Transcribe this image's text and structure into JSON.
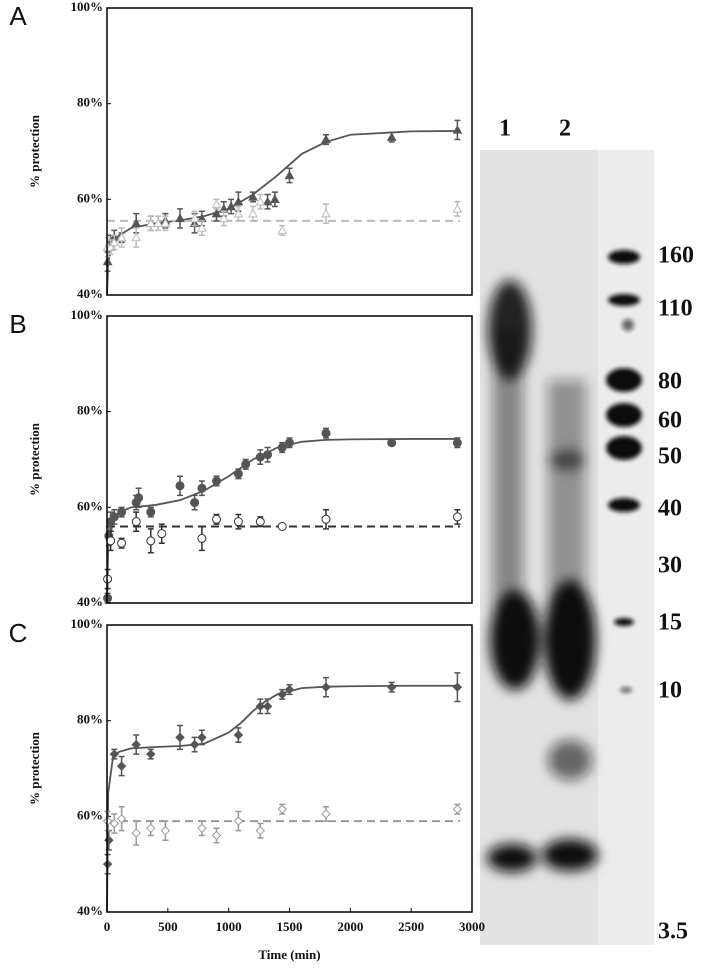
{
  "chart_data": [
    {
      "type": "scatter",
      "panel_label": "A",
      "ylabel": "% protection",
      "xlim": [
        0,
        3000
      ],
      "ylim": [
        40,
        100
      ],
      "yticks": [
        {
          "value": 40,
          "label": "40%"
        },
        {
          "value": 60,
          "label": "60%"
        },
        {
          "value": 80,
          "label": "80%"
        },
        {
          "value": 100,
          "label": "100%"
        }
      ],
      "series": [
        {
          "color": "#555555",
          "marker": "triangle",
          "filled": true,
          "x": [
            5,
            30,
            60,
            120,
            240,
            360,
            480,
            600,
            720,
            780,
            900,
            960,
            1020,
            1080,
            1200,
            1320,
            1380,
            1500,
            1800,
            2340,
            2880
          ],
          "values": [
            47,
            51,
            52,
            52,
            55,
            55,
            55.5,
            56,
            55,
            56,
            57,
            58,
            58.5,
            59.5,
            60.5,
            59.5,
            60,
            65,
            72.5,
            73,
            74.5
          ],
          "errors": [
            2,
            1.5,
            1.5,
            1,
            2,
            1.5,
            1.5,
            2,
            2,
            1.5,
            1.5,
            1.5,
            1.5,
            2,
            1,
            1.5,
            1.5,
            1.5,
            1,
            1,
            2
          ]
        },
        {
          "color": "#bbbbbb",
          "marker": "triangle",
          "filled": false,
          "x": [
            5,
            30,
            60,
            120,
            240,
            360,
            420,
            480,
            720,
            780,
            900,
            960,
            1080,
            1200,
            1260,
            1440,
            1800,
            2880
          ],
          "values": [
            50,
            50,
            51,
            52,
            52,
            55,
            55,
            55,
            56,
            54,
            59,
            56,
            57,
            57,
            59.5,
            53.5,
            57,
            58
          ],
          "errors": [
            2,
            1.5,
            1.5,
            2,
            2,
            1.5,
            1.5,
            1.5,
            1.5,
            1.5,
            1,
            1.5,
            1.5,
            1.5,
            1.5,
            1,
            2,
            1.5
          ]
        }
      ],
      "fits": [
        {
          "color": "#555555",
          "dashed": false,
          "x": [
            0,
            10,
            50,
            100,
            200,
            400,
            600,
            800,
            1000,
            1200,
            1400,
            1600,
            1800,
            2000,
            2500,
            2900
          ],
          "values": [
            40,
            47,
            51,
            52.5,
            54,
            55,
            55.6,
            56.5,
            58,
            61,
            65,
            69.5,
            72,
            73.5,
            74.2,
            74.3
          ]
        },
        {
          "color": "#bbbbbb",
          "dashed": true,
          "x": [
            0,
            2900
          ],
          "values": [
            55.5,
            55.5
          ]
        }
      ]
    },
    {
      "type": "scatter",
      "panel_label": "B",
      "ylabel": "% protection",
      "xlim": [
        0,
        3000
      ],
      "ylim": [
        40,
        100
      ],
      "yticks": [
        {
          "value": 40,
          "label": "40%"
        },
        {
          "value": 60,
          "label": "60%"
        },
        {
          "value": 80,
          "label": "80%"
        },
        {
          "value": 100,
          "label": "100%"
        }
      ],
      "series": [
        {
          "color": "#555555",
          "marker": "circle",
          "filled": true,
          "x": [
            5,
            15,
            30,
            60,
            120,
            240,
            260,
            360,
            600,
            720,
            780,
            900,
            1080,
            1140,
            1260,
            1320,
            1440,
            1500,
            1800,
            2340,
            2880
          ],
          "values": [
            41,
            54,
            57,
            58,
            59,
            61,
            62,
            59,
            64.5,
            61,
            64,
            65.5,
            67,
            69,
            70.5,
            71,
            72.5,
            73.5,
            75.5,
            73.5,
            73.5
          ],
          "errors": [
            1,
            2,
            2,
            1.5,
            1,
            1.5,
            2,
            1,
            2,
            1.5,
            1.5,
            1,
            1,
            1,
            1.5,
            1.5,
            1,
            1,
            1,
            0.5,
            1
          ]
        },
        {
          "color": "#333333",
          "marker": "circle",
          "filled": false,
          "x": [
            5,
            30,
            120,
            240,
            360,
            450,
            780,
            900,
            1080,
            1260,
            1440,
            1800,
            2880
          ],
          "values": [
            45,
            53,
            52.5,
            57,
            53,
            54.5,
            53.5,
            57.5,
            57,
            57,
            56,
            57.5,
            58
          ],
          "errors": [
            2,
            2,
            1,
            2,
            2.5,
            2,
            2.5,
            1,
            1.5,
            1,
            0.5,
            2,
            1.5
          ]
        }
      ],
      "fits": [
        {
          "color": "#555555",
          "dashed": false,
          "x": [
            0,
            10,
            50,
            100,
            200,
            400,
            600,
            800,
            1000,
            1200,
            1400,
            1600,
            1800,
            2000,
            2500,
            2900
          ],
          "values": [
            40,
            52,
            57,
            59,
            60,
            60.5,
            61.5,
            63.5,
            66.5,
            70,
            72.5,
            73.7,
            74.1,
            74.2,
            74.3,
            74.3
          ]
        },
        {
          "color": "#333333",
          "dashed": true,
          "x": [
            0,
            2900
          ],
          "values": [
            56,
            56
          ]
        }
      ]
    },
    {
      "type": "scatter",
      "panel_label": "C",
      "ylabel": "% protection",
      "xlabel": "Time (min)",
      "xlim": [
        0,
        3000
      ],
      "ylim": [
        40,
        100
      ],
      "xticks": [
        0,
        500,
        1000,
        1500,
        2000,
        2500,
        3000
      ],
      "yticks": [
        {
          "value": 40,
          "label": "40%"
        },
        {
          "value": 60,
          "label": "60%"
        },
        {
          "value": 80,
          "label": "80%"
        },
        {
          "value": 100,
          "label": "100%"
        }
      ],
      "series": [
        {
          "color": "#555555",
          "marker": "diamond",
          "filled": true,
          "x": [
            5,
            15,
            60,
            120,
            240,
            360,
            600,
            720,
            780,
            1080,
            1260,
            1320,
            1440,
            1500,
            1800,
            2340,
            2880
          ],
          "values": [
            50,
            55,
            73,
            70.5,
            75,
            73,
            76.5,
            75,
            76.5,
            77,
            83,
            83,
            85.5,
            86.5,
            87,
            87,
            87
          ],
          "errors": [
            2,
            2,
            1,
            2,
            2,
            1,
            2.5,
            1.5,
            1.5,
            1.5,
            1.5,
            1.5,
            1,
            1,
            2,
            1,
            3
          ]
        },
        {
          "color": "#999999",
          "marker": "diamond",
          "filled": false,
          "x": [
            5,
            60,
            120,
            240,
            360,
            480,
            780,
            900,
            1080,
            1260,
            1440,
            1800,
            2880
          ],
          "values": [
            59,
            58.5,
            59.5,
            56.5,
            57.5,
            57,
            57.5,
            56,
            59,
            57,
            61.5,
            60.5,
            61.5
          ],
          "errors": [
            2,
            2,
            2.5,
            2.5,
            1.5,
            2,
            1.5,
            1.5,
            2,
            1.5,
            1,
            1.5,
            1
          ]
        }
      ],
      "fits": [
        {
          "color": "#555555",
          "dashed": false,
          "x": [
            0,
            10,
            50,
            100,
            200,
            400,
            600,
            800,
            1000,
            1100,
            1200,
            1300,
            1400,
            1600,
            1800,
            2000,
            2500,
            2900
          ],
          "values": [
            40,
            65,
            72.5,
            73.5,
            74.2,
            74.5,
            74.7,
            75.2,
            77.5,
            79.5,
            82,
            84,
            85.5,
            86.8,
            87.1,
            87.2,
            87.3,
            87.3
          ]
        },
        {
          "color": "#999999",
          "dashed": true,
          "x": [
            0,
            2900
          ],
          "values": [
            59,
            59
          ]
        }
      ]
    }
  ],
  "gel": {
    "lanes": [
      "1",
      "2"
    ],
    "markers": [
      "160",
      "110",
      "80",
      "60",
      "50",
      "40",
      "30",
      "15",
      "10",
      "3.5"
    ]
  }
}
